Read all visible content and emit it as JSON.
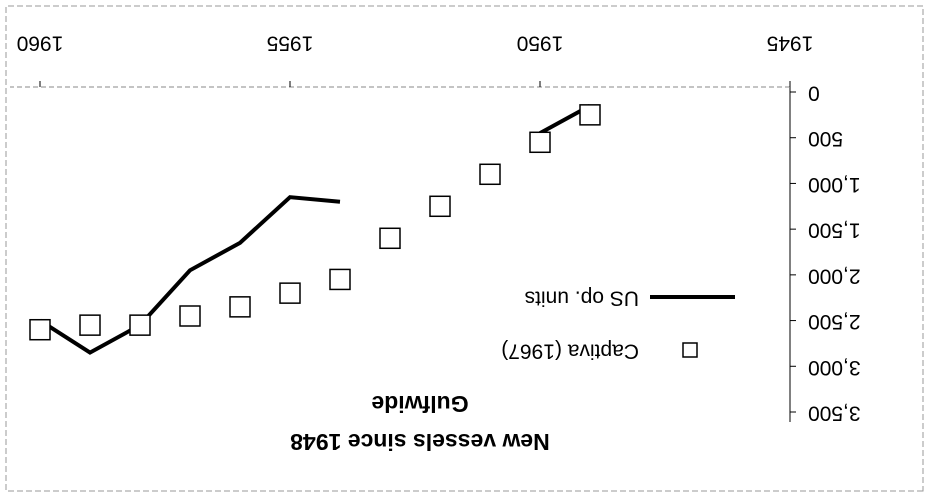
{
  "chart_data": {
    "type": "line",
    "title": "New vessels since 1948",
    "subtitle": "Gulfwide",
    "x": [
      1949,
      1950,
      1951,
      1952,
      1953,
      1954,
      1955,
      1956,
      1957,
      1958,
      1959,
      1960
    ],
    "series": [
      {
        "name": "US op. units",
        "color": "#000000",
        "mark": "line",
        "values": [
          150,
          450,
          null,
          null,
          null,
          1200,
          1150,
          1650,
          1950,
          2550,
          2850,
          2500
        ]
      },
      {
        "name": "Captiva (1967)",
        "color": "#000000",
        "mark": "square",
        "values": [
          250,
          550,
          900,
          1250,
          1600,
          2050,
          2200,
          2350,
          2450,
          2550,
          2550,
          2600
        ]
      }
    ],
    "xlim": [
      1945,
      1960.6
    ],
    "xticks": [
      1945,
      1950,
      1955,
      1960
    ],
    "ylim": [
      0,
      3500
    ],
    "yticks": [
      0,
      500,
      {
        "value": 1000,
        "label": "1,000"
      },
      {
        "value": 1500,
        "label": "1,500"
      },
      {
        "value": 2000,
        "label": "2,000"
      },
      {
        "value": 2500,
        "label": "2,500"
      },
      {
        "value": 3000,
        "label": "3,000"
      },
      {
        "value": 3500,
        "label": "3,500"
      }
    ],
    "rotation": 180
  }
}
